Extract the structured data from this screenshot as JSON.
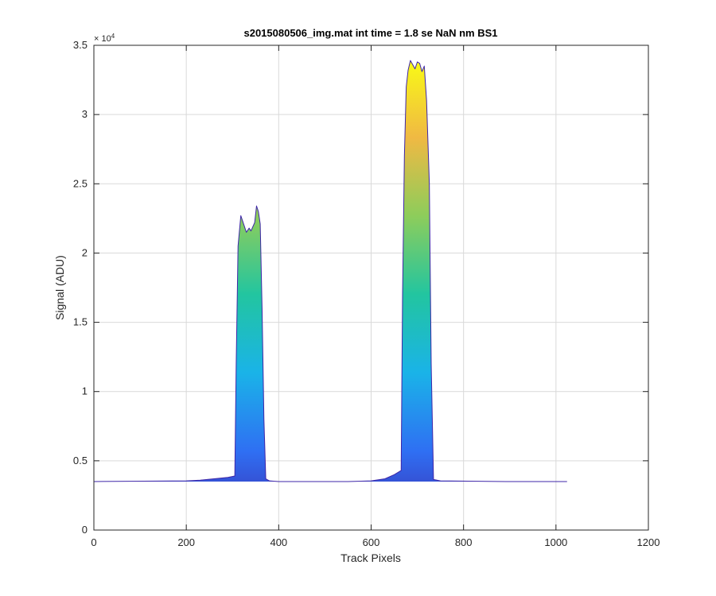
{
  "chart_data": {
    "type": "area",
    "title": "s2015080506_img.mat int time = 1.8 se  NaN nm BS1",
    "xlabel": "Track Pixels",
    "ylabel": "Signal (ADU)",
    "y_exponent_base": "× 10",
    "y_exponent_power": "4",
    "xlim": [
      0,
      1200
    ],
    "ylim": [
      0,
      35000
    ],
    "xticks": [
      0,
      200,
      400,
      600,
      800,
      1000,
      1200
    ],
    "xtick_labels": [
      "0",
      "200",
      "400",
      "600",
      "800",
      "1000",
      "1200"
    ],
    "yticks": [
      0,
      5000,
      10000,
      15000,
      20000,
      25000,
      30000,
      35000
    ],
    "ytick_labels": [
      "0",
      "0.5",
      "1",
      "1.5",
      "2",
      "2.5",
      "3",
      "3.5"
    ],
    "grid": true,
    "colormap": [
      "#3e26a8",
      "#2f6ff3",
      "#1ab3e8",
      "#22c5a0",
      "#8dcd5b",
      "#f0b943",
      "#f9fb15"
    ],
    "baseline": 3500,
    "series": [
      {
        "x": [
          0,
          200,
          230,
          260,
          290,
          305,
          308,
          312,
          318,
          322,
          330,
          336,
          340,
          348,
          352,
          356,
          360,
          364,
          368,
          372,
          380,
          400,
          550,
          600,
          630,
          650,
          665,
          668,
          672,
          676,
          680,
          685,
          690,
          695,
          700,
          705,
          710,
          715,
          720,
          726,
          730,
          735,
          750,
          900,
          1024
        ],
        "y": [
          3500,
          3550,
          3600,
          3700,
          3800,
          3900,
          12000,
          20500,
          22700,
          22300,
          21500,
          21800,
          21600,
          22200,
          23400,
          23000,
          22100,
          16000,
          8000,
          3700,
          3550,
          3500,
          3500,
          3550,
          3700,
          4000,
          4300,
          17000,
          27000,
          32000,
          33200,
          33900,
          33600,
          33300,
          33800,
          33700,
          33100,
          33500,
          31000,
          25000,
          12000,
          3650,
          3550,
          3500,
          3500
        ]
      }
    ]
  }
}
